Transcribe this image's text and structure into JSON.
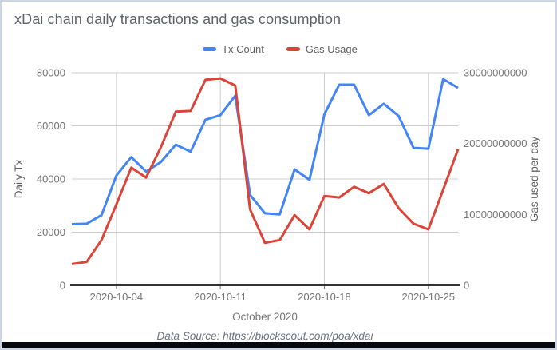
{
  "window": {
    "frame_border_color": "#ccd5e6",
    "bottom_bar_color": "#06080f",
    "background_color": "#ffffff"
  },
  "header": {
    "title": "xDai chain daily transactions and gas consumption",
    "title_color": "#5f6368"
  },
  "footer": {
    "text": "Data Source: https://blockscout.com/poa/xdai",
    "color": "#6b7280"
  },
  "chart_data": {
    "type": "line",
    "title": "xDai chain daily transactions and gas consumption",
    "legend_position": "top",
    "grid": true,
    "colors": {
      "gridline": "#cccccc",
      "axis_line": "#333333",
      "tick_label": "#757575",
      "axis_title": "#616161"
    },
    "x": [
      "2020-10-01",
      "2020-10-02",
      "2020-10-03",
      "2020-10-04",
      "2020-10-05",
      "2020-10-06",
      "2020-10-07",
      "2020-10-08",
      "2020-10-09",
      "2020-10-10",
      "2020-10-11",
      "2020-10-12",
      "2020-10-13",
      "2020-10-14",
      "2020-10-15",
      "2020-10-16",
      "2020-10-17",
      "2020-10-18",
      "2020-10-19",
      "2020-10-20",
      "2020-10-21",
      "2020-10-22",
      "2020-10-23",
      "2020-10-24",
      "2020-10-25",
      "2020-10-26",
      "2020-10-27"
    ],
    "x_axis": {
      "title": "October 2020",
      "ticks": [
        "2020-10-04",
        "2020-10-11",
        "2020-10-18",
        "2020-10-25"
      ]
    },
    "left_axis": {
      "title": "Daily Tx",
      "range": [
        0,
        80000
      ],
      "ticks": [
        0,
        20000,
        40000,
        60000,
        80000
      ]
    },
    "right_axis": {
      "title": "Gas used per day",
      "range": [
        0,
        30000000000
      ],
      "ticks": [
        0,
        10000000000,
        20000000000,
        30000000000
      ]
    },
    "series": [
      {
        "name": "Tx Count",
        "color": "#4285f4",
        "axis": "left",
        "values": [
          23000,
          23200,
          26400,
          41300,
          48200,
          42800,
          46400,
          52900,
          50300,
          62300,
          64000,
          71300,
          34000,
          27100,
          26700,
          43600,
          39700,
          64300,
          75500,
          75500,
          64000,
          68300,
          63700,
          51700,
          51400,
          77600,
          74300
        ]
      },
      {
        "name": "Gas Usage",
        "color": "#db4437",
        "axis": "right",
        "values": [
          3000000000,
          3300000000,
          6400000000,
          11400000000,
          16600000000,
          15200000000,
          19500000000,
          24500000000,
          24600000000,
          29000000000,
          29200000000,
          28200000000,
          10700000000,
          6000000000,
          6400000000,
          9900000000,
          7900000000,
          12600000000,
          12400000000,
          13900000000,
          13000000000,
          14300000000,
          10900000000,
          8700000000,
          7900000000,
          13500000000,
          19200000000
        ]
      }
    ]
  }
}
